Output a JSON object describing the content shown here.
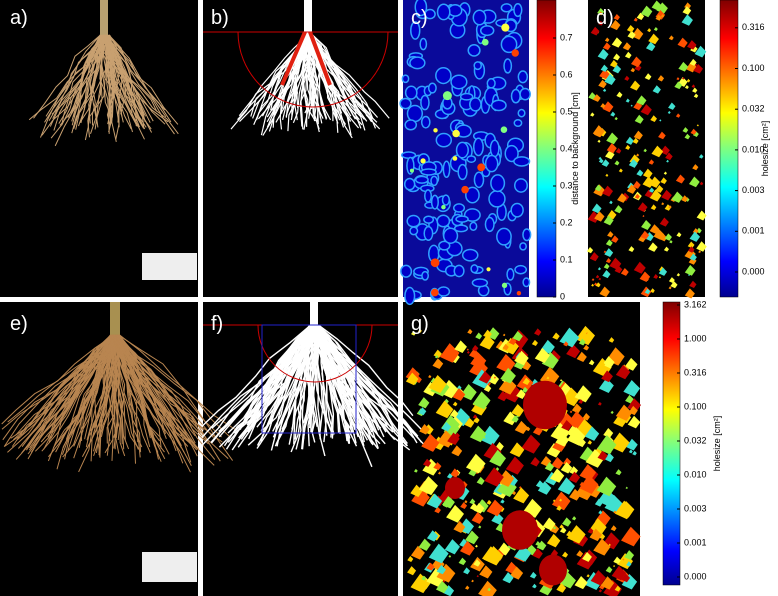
{
  "panels": [
    {
      "label": "a)"
    },
    {
      "label": "b)"
    },
    {
      "label": "c)"
    },
    {
      "label": "d)"
    },
    {
      "label": "e)"
    },
    {
      "label": "f)"
    },
    {
      "label": "g)"
    }
  ],
  "colorbars": [
    {
      "label": "distance to background [cm]",
      "ticks": [
        0,
        0.1,
        0.2,
        0.3,
        0.4,
        0.5,
        0.6,
        0.7
      ]
    },
    {
      "label": "holesize [cm²]",
      "ticks": [
        "0.000",
        "0.001",
        "0.003",
        "0.010",
        "0.032",
        "0.100",
        "0.316"
      ]
    },
    {
      "label": "holesize [cm²]",
      "ticks": [
        "0.000",
        "0.001",
        "0.003",
        "0.010",
        "0.032",
        "0.100",
        "0.316",
        "1.000",
        "3.162"
      ]
    }
  ]
}
